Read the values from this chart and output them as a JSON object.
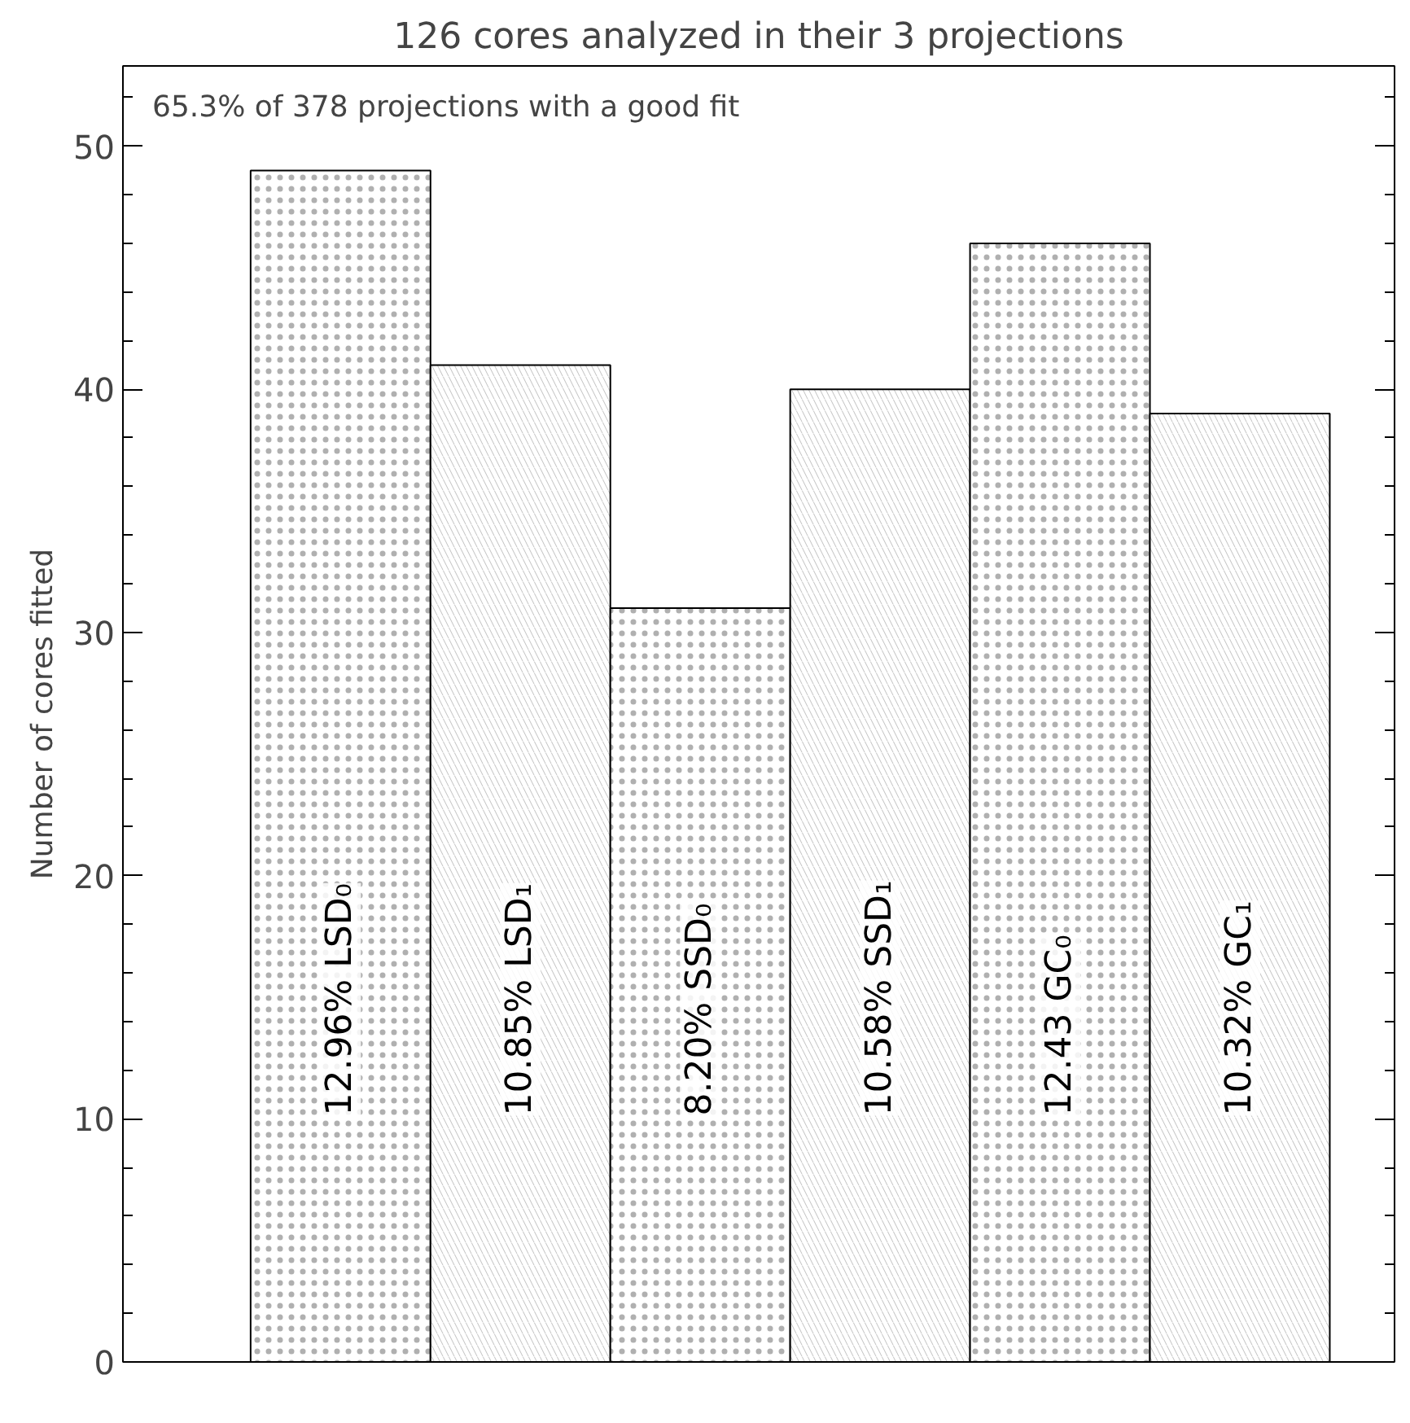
{
  "chart_data": {
    "type": "bar",
    "title": "126 cores analyzed in their 3 projections",
    "ylabel": "Number of cores fitted",
    "annotations": [
      "65.3% of 378 projections with a good fit"
    ],
    "categories": [
      "12.96% LSD₀",
      "10.85% LSD₁",
      "8.20% SSD₀",
      "10.58% SSD₁",
      "12.43 GC₀",
      "10.32% GC₁"
    ],
    "values": [
      49,
      41,
      31,
      40,
      46,
      39
    ],
    "colors": [
      "#ffffff",
      "#ffffff",
      "#ffffff",
      "#ffffff",
      "#ffffff",
      "#ffffff"
    ],
    "ylim": [
      0,
      53.3
    ],
    "yticks": [
      0,
      10,
      20,
      30,
      40,
      50
    ],
    "grid": false
  }
}
